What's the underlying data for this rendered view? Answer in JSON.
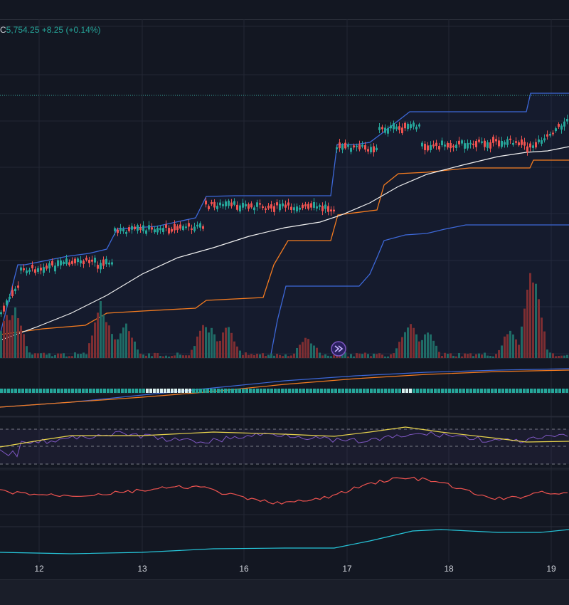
{
  "legend": {
    "letter": "C",
    "close": "5,754.25",
    "change": "+8.25",
    "change_pct": "(+0.14%)"
  },
  "colors": {
    "background": "#131722",
    "grid": "#232734",
    "up": "#26a69a",
    "down": "#ef5350",
    "vol_up": "#1f6b66",
    "vol_down": "#7d2e32",
    "upper_band": "#3d68d8",
    "middle_band": "#f57c20",
    "moving_average": "#f0f0f0",
    "rsi": "#7e57c2",
    "rsi_signal": "#e8d44d",
    "osc_red": "#ef5350",
    "osc_cyan": "#26c6da"
  },
  "icons": {
    "replay": "fast-forward-circle-icon"
  },
  "chart_data": {
    "type": "candlestick",
    "x_tick_labels": [
      "12",
      "13",
      "16",
      "17",
      "18",
      "19"
    ],
    "last_close": 5754.25,
    "change": 8.25,
    "change_pct": 0.14,
    "panes": [
      "price",
      "volume",
      "histogram",
      "rsi",
      "oscillator",
      "oscillator"
    ],
    "rsi_levels": [
      70,
      50,
      30
    ],
    "grid": true
  }
}
